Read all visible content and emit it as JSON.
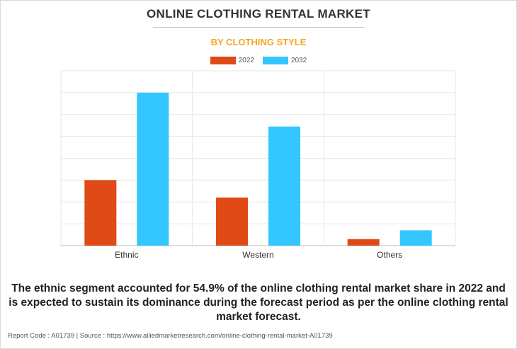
{
  "title": "ONLINE CLOTHING RENTAL MARKET",
  "subtitle": "BY CLOTHING STYLE",
  "colors": {
    "s2022": "#e04a17",
    "s2032": "#33c6ff",
    "subtitle": "#f5a623",
    "grid": "#e6e6e6"
  },
  "chart_data": {
    "type": "bar",
    "categories": [
      "Ethnic",
      "Western",
      "Others"
    ],
    "series": [
      {
        "name": "2022",
        "values": [
          3.0,
          2.2,
          0.3
        ]
      },
      {
        "name": "2032",
        "values": [
          7.0,
          5.45,
          0.7
        ]
      }
    ],
    "ylim": [
      0,
      8
    ],
    "grid": true,
    "legend": "top-center"
  },
  "caption": "The ethnic segment accounted for 54.9% of the online clothing rental market share in 2022 and is expected to sustain its dominance during the forecast period as per the online clothing rental market forecast.",
  "footer": "Report Code : A01739  |  Source : https://www.alliedmarketresearch.com/online-clothing-rental-market-A01739"
}
